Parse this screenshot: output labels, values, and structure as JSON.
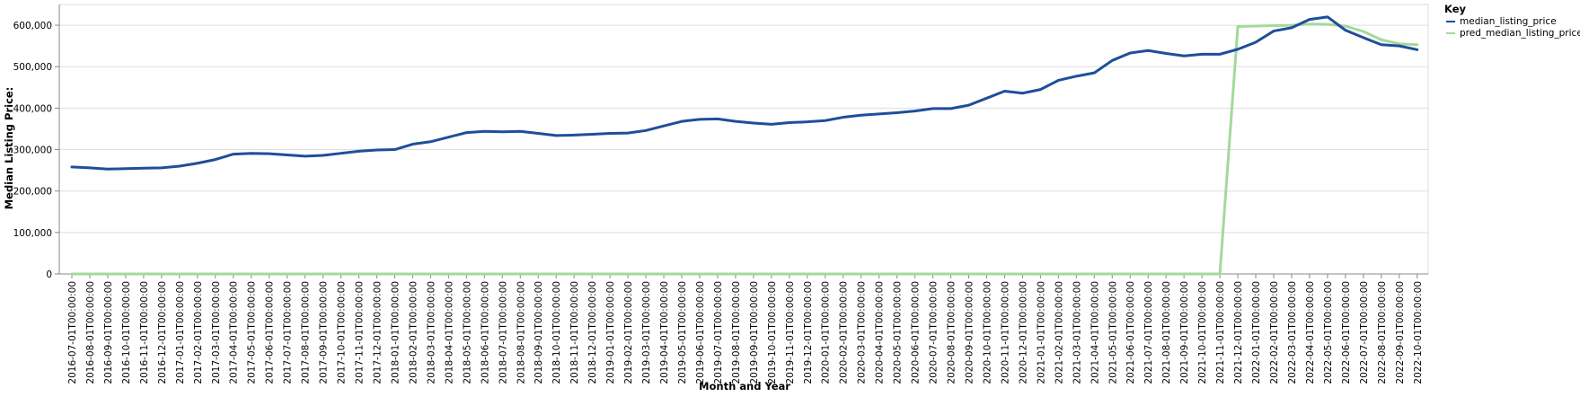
{
  "chart_data": {
    "type": "line",
    "xlabel": "Month and Year",
    "ylabel": "Median Listing Price:",
    "ylim": [
      0,
      650000
    ],
    "yticks": [
      0,
      100000,
      200000,
      300000,
      400000,
      500000,
      600000
    ],
    "ytick_labels": [
      "0",
      "100,000",
      "200,000",
      "300,000",
      "400,000",
      "500,000",
      "600,000"
    ],
    "grid": true,
    "legend": {
      "title": "Key",
      "placement": "top-right"
    },
    "x": [
      "2016-07-01T00:00:00",
      "2016-08-01T00:00:00",
      "2016-09-01T00:00:00",
      "2016-10-01T00:00:00",
      "2016-11-01T00:00:00",
      "2016-12-01T00:00:00",
      "2017-01-01T00:00:00",
      "2017-02-01T00:00:00",
      "2017-03-01T00:00:00",
      "2017-04-01T00:00:00",
      "2017-05-01T00:00:00",
      "2017-06-01T00:00:00",
      "2017-07-01T00:00:00",
      "2017-08-01T00:00:00",
      "2017-09-01T00:00:00",
      "2017-10-01T00:00:00",
      "2017-11-01T00:00:00",
      "2017-12-01T00:00:00",
      "2018-01-01T00:00:00",
      "2018-02-01T00:00:00",
      "2018-03-01T00:00:00",
      "2018-04-01T00:00:00",
      "2018-05-01T00:00:00",
      "2018-06-01T00:00:00",
      "2018-07-01T00:00:00",
      "2018-08-01T00:00:00",
      "2018-09-01T00:00:00",
      "2018-10-01T00:00:00",
      "2018-11-01T00:00:00",
      "2018-12-01T00:00:00",
      "2019-01-01T00:00:00",
      "2019-02-01T00:00:00",
      "2019-03-01T00:00:00",
      "2019-04-01T00:00:00",
      "2019-05-01T00:00:00",
      "2019-06-01T00:00:00",
      "2019-07-01T00:00:00",
      "2019-08-01T00:00:00",
      "2019-09-01T00:00:00",
      "2019-10-01T00:00:00",
      "2019-11-01T00:00:00",
      "2019-12-01T00:00:00",
      "2020-01-01T00:00:00",
      "2020-02-01T00:00:00",
      "2020-03-01T00:00:00",
      "2020-04-01T00:00:00",
      "2020-05-01T00:00:00",
      "2020-06-01T00:00:00",
      "2020-07-01T00:00:00",
      "2020-08-01T00:00:00",
      "2020-09-01T00:00:00",
      "2020-10-01T00:00:00",
      "2020-11-01T00:00:00",
      "2020-12-01T00:00:00",
      "2021-01-01T00:00:00",
      "2021-02-01T00:00:00",
      "2021-03-01T00:00:00",
      "2021-04-01T00:00:00",
      "2021-05-01T00:00:00",
      "2021-06-01T00:00:00",
      "2021-07-01T00:00:00",
      "2021-08-01T00:00:00",
      "2021-09-01T00:00:00",
      "2021-10-01T00:00:00",
      "2021-11-01T00:00:00",
      "2021-12-01T00:00:00",
      "2022-01-01T00:00:00",
      "2022-02-01T00:00:00",
      "2022-03-01T00:00:00",
      "2022-04-01T00:00:00",
      "2022-05-01T00:00:00",
      "2022-06-01T00:00:00",
      "2022-07-01T00:00:00",
      "2022-08-01T00:00:00",
      "2022-09-01T00:00:00",
      "2022-10-01T00:00:00"
    ],
    "series": [
      {
        "name": "median_listing_price",
        "color": "#1f4e9a",
        "values": [
          258000,
          256000,
          253000,
          254000,
          255000,
          256000,
          260000,
          267000,
          276000,
          289000,
          291000,
          290000,
          287000,
          284000,
          286000,
          291000,
          296000,
          299000,
          300000,
          313000,
          319000,
          330000,
          341000,
          344000,
          343000,
          344000,
          339000,
          334000,
          335000,
          337000,
          339000,
          340000,
          346000,
          357000,
          368000,
          373000,
          374000,
          368000,
          364000,
          361000,
          365000,
          367000,
          370000,
          378000,
          383000,
          386000,
          389000,
          393000,
          399000,
          399000,
          407000,
          424000,
          441000,
          436000,
          445000,
          467000,
          477000,
          485000,
          515000,
          533000,
          539000,
          532000,
          526000,
          530000,
          530000,
          542000,
          559000,
          586000,
          594000,
          614000,
          620000,
          588000,
          570000,
          553000,
          550000,
          541000
        ]
      },
      {
        "name": "pred_median_listing_price",
        "color": "#a3d99a",
        "values": [
          0,
          0,
          0,
          0,
          0,
          0,
          0,
          0,
          0,
          0,
          0,
          0,
          0,
          0,
          0,
          0,
          0,
          0,
          0,
          0,
          0,
          0,
          0,
          0,
          0,
          0,
          0,
          0,
          0,
          0,
          0,
          0,
          0,
          0,
          0,
          0,
          0,
          0,
          0,
          0,
          0,
          0,
          0,
          0,
          0,
          0,
          0,
          0,
          0,
          0,
          0,
          0,
          0,
          0,
          0,
          0,
          0,
          0,
          0,
          0,
          0,
          0,
          0,
          0,
          0,
          597000,
          598000,
          599000,
          600000,
          603000,
          602000,
          598000,
          585000,
          565000,
          555000,
          553000
        ]
      }
    ]
  }
}
